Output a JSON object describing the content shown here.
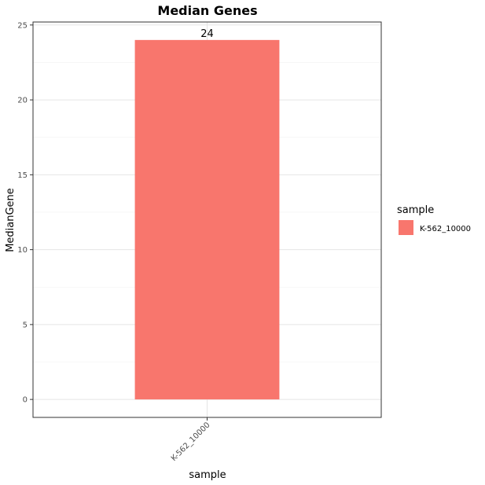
{
  "chart_data": {
    "type": "bar",
    "title": "Median Genes",
    "xlabel": "sample",
    "ylabel": "MedianGene",
    "categories": [
      "K-562_10000"
    ],
    "values": [
      24
    ],
    "data_labels": [
      "24"
    ],
    "ylim": [
      -1.2,
      25.2
    ],
    "yticks": [
      0,
      5,
      10,
      15,
      20,
      25
    ],
    "ytick_labels": [
      "0",
      "5",
      "10",
      "15",
      "20",
      "25"
    ],
    "grid": true,
    "bar_color": "#F8766D",
    "legend": {
      "title": "sample",
      "position": "right",
      "entries": [
        {
          "label": "K-562_10000",
          "color": "#F8766D"
        }
      ]
    }
  }
}
